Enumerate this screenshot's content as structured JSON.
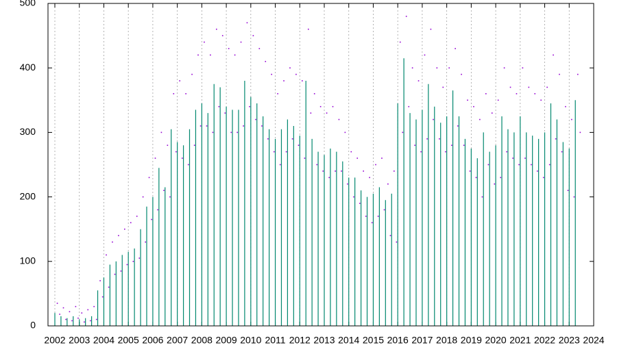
{
  "chart_data": {
    "type": "impulse-scatter",
    "xlim": [
      2001.72,
      2024
    ],
    "xticks": [
      2002,
      2003,
      2004,
      2005,
      2006,
      2007,
      2008,
      2009,
      2010,
      2011,
      2012,
      2013,
      2014,
      2015,
      2016,
      2017,
      2018,
      2019,
      2020,
      2021,
      2022,
      2023,
      2024
    ],
    "ylim": [
      0,
      500
    ],
    "yticks": [
      0,
      100,
      200,
      300,
      400,
      500
    ],
    "grid": true,
    "series": [
      {
        "color": "#00876e",
        "style": "impulses",
        "x": [
          2002,
          2002.25,
          2002.5,
          2002.75,
          2003,
          2003.25,
          2003.5,
          2003.75,
          2004,
          2004.25,
          2004.5,
          2004.75,
          2005,
          2005.25,
          2005.5,
          2005.75,
          2006,
          2006.25,
          2006.5,
          2006.75,
          2007,
          2007.25,
          2007.5,
          2007.75,
          2008,
          2008.25,
          2008.5,
          2008.75,
          2009,
          2009.25,
          2009.5,
          2009.75,
          2010,
          2010.25,
          2010.5,
          2010.75,
          2011,
          2011.25,
          2011.5,
          2011.75,
          2012,
          2012.25,
          2012.5,
          2012.75,
          2013,
          2013.25,
          2013.5,
          2013.75,
          2014,
          2014.25,
          2014.5,
          2014.75,
          2015,
          2015.25,
          2015.5,
          2015.75,
          2016,
          2016.25,
          2016.5,
          2016.75,
          2017,
          2017.25,
          2017.5,
          2017.75,
          2018,
          2018.25,
          2018.5,
          2018.75,
          2019,
          2019.25,
          2019.5,
          2019.75,
          2020,
          2020.25,
          2020.5,
          2020.75,
          2021,
          2021.25,
          2021.5,
          2021.75,
          2022,
          2022.25,
          2022.5,
          2022.75,
          2023,
          2023.25
        ],
        "values": [
          20,
          15,
          12,
          15,
          10,
          12,
          15,
          55,
          75,
          95,
          100,
          110,
          115,
          120,
          150,
          185,
          200,
          245,
          215,
          305,
          285,
          280,
          305,
          335,
          345,
          330,
          375,
          370,
          340,
          335,
          335,
          380,
          355,
          345,
          325,
          305,
          290,
          305,
          320,
          310,
          295,
          380,
          290,
          270,
          265,
          275,
          270,
          255,
          230,
          230,
          210,
          200,
          205,
          215,
          195,
          205,
          345,
          415,
          330,
          320,
          335,
          375,
          340,
          315,
          325,
          365,
          325,
          290,
          275,
          260,
          300,
          270,
          280,
          325,
          305,
          300,
          325,
          300,
          295,
          290,
          300,
          345,
          320,
          285,
          275,
          350
        ]
      },
      {
        "color": "#9400d3",
        "style": "dots",
        "x": [
          2002.1,
          2002.2,
          2002.35,
          2002.45,
          2002.6,
          2002.7,
          2002.85,
          2002.95,
          2003.1,
          2003.2,
          2003.35,
          2003.45,
          2003.6,
          2003.7,
          2003.85,
          2003.95,
          2004.1,
          2004.2,
          2004.35,
          2004.45,
          2004.6,
          2004.7,
          2004.85,
          2004.95,
          2005.1,
          2005.2,
          2005.35,
          2005.45,
          2005.6,
          2005.7,
          2005.85,
          2005.95,
          2006.1,
          2006.2,
          2006.35,
          2006.45,
          2006.6,
          2006.7,
          2006.85,
          2006.95,
          2007.1,
          2007.2,
          2007.35,
          2007.45,
          2007.6,
          2007.7,
          2007.85,
          2007.95,
          2008.1,
          2008.2,
          2008.35,
          2008.45,
          2008.6,
          2008.7,
          2008.85,
          2008.95,
          2009.1,
          2009.2,
          2009.35,
          2009.45,
          2009.6,
          2009.7,
          2009.85,
          2009.95,
          2010.1,
          2010.2,
          2010.35,
          2010.45,
          2010.6,
          2010.7,
          2010.85,
          2010.95,
          2011.1,
          2011.2,
          2011.35,
          2011.45,
          2011.6,
          2011.7,
          2011.85,
          2011.95,
          2012.1,
          2012.2,
          2012.35,
          2012.45,
          2012.6,
          2012.7,
          2012.85,
          2012.95,
          2013.1,
          2013.2,
          2013.35,
          2013.45,
          2013.6,
          2013.7,
          2013.85,
          2013.95,
          2014.1,
          2014.2,
          2014.35,
          2014.45,
          2014.6,
          2014.7,
          2014.85,
          2014.95,
          2015.1,
          2015.2,
          2015.35,
          2015.45,
          2015.6,
          2015.7,
          2015.85,
          2015.95,
          2016.1,
          2016.2,
          2016.35,
          2016.45,
          2016.6,
          2016.7,
          2016.85,
          2016.95,
          2017.1,
          2017.2,
          2017.35,
          2017.45,
          2017.6,
          2017.7,
          2017.85,
          2017.95,
          2018.1,
          2018.2,
          2018.35,
          2018.45,
          2018.6,
          2018.7,
          2018.85,
          2018.95,
          2019.1,
          2019.2,
          2019.35,
          2019.45,
          2019.6,
          2019.7,
          2019.85,
          2019.95,
          2020.1,
          2020.2,
          2020.35,
          2020.45,
          2020.6,
          2020.7,
          2020.85,
          2020.95,
          2021.1,
          2021.2,
          2021.35,
          2021.45,
          2021.6,
          2021.7,
          2021.85,
          2021.95,
          2022.1,
          2022.2,
          2022.35,
          2022.45,
          2022.6,
          2022.7,
          2022.85,
          2022.95,
          2023.1,
          2023.2,
          2023.35,
          2023.45
        ],
        "values": [
          35,
          18,
          28,
          10,
          22,
          8,
          30,
          12,
          20,
          6,
          25,
          8,
          30,
          10,
          70,
          45,
          110,
          60,
          130,
          80,
          140,
          85,
          150,
          95,
          160,
          100,
          170,
          105,
          200,
          130,
          230,
          165,
          260,
          180,
          300,
          210,
          280,
          200,
          360,
          270,
          380,
          260,
          360,
          250,
          390,
          280,
          420,
          310,
          440,
          310,
          420,
          300,
          460,
          340,
          450,
          330,
          430,
          300,
          420,
          300,
          440,
          310,
          470,
          340,
          450,
          320,
          430,
          310,
          410,
          290,
          390,
          270,
          360,
          250,
          380,
          270,
          400,
          290,
          390,
          280,
          380,
          260,
          460,
          330,
          360,
          250,
          340,
          240,
          330,
          230,
          340,
          240,
          320,
          240,
          300,
          220,
          270,
          200,
          260,
          190,
          240,
          170,
          230,
          160,
          250,
          170,
          260,
          180,
          220,
          140,
          240,
          130,
          440,
          300,
          480,
          340,
          400,
          280,
          380,
          270,
          420,
          290,
          460,
          320,
          400,
          290,
          370,
          270,
          400,
          280,
          430,
          310,
          390,
          280,
          350,
          240,
          340,
          230,
          320,
          200,
          360,
          250,
          330,
          220,
          350,
          230,
          400,
          270,
          370,
          260,
          360,
          250,
          400,
          260,
          370,
          250,
          360,
          240,
          350,
          230,
          370,
          250,
          420,
          290,
          390,
          270,
          340,
          210,
          320,
          200,
          390,
          300
        ]
      }
    ]
  }
}
